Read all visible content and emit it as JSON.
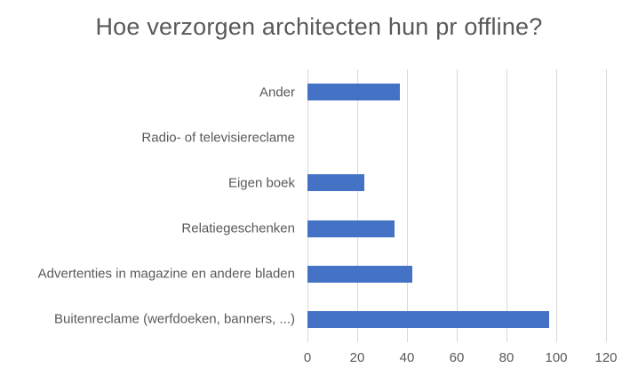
{
  "chart_data": {
    "type": "bar",
    "orientation": "horizontal",
    "title": "Hoe verzorgen architecten hun pr offline?",
    "categories": [
      "Ander",
      "Radio- of televisiereclame",
      "Eigen boek",
      "Relatiegeschenken",
      "Advertenties in magazine en andere bladen",
      "Buitenreclame (werfdoeken, banners, ...)"
    ],
    "category_order": "top-to-bottom",
    "values": [
      37,
      0,
      23,
      35,
      42,
      97
    ],
    "xlabel": "",
    "ylabel": "",
    "xlim": [
      0,
      120
    ],
    "xticks": [
      0,
      20,
      40,
      60,
      80,
      100,
      120
    ],
    "grid": "vertical-gridlines-on",
    "legend": "none",
    "colors": {
      "bar": "#4472C4",
      "gridline": "#D9D9D9",
      "title_text": "#595959",
      "axis_text": "#595959",
      "background": "#FFFFFF"
    }
  }
}
